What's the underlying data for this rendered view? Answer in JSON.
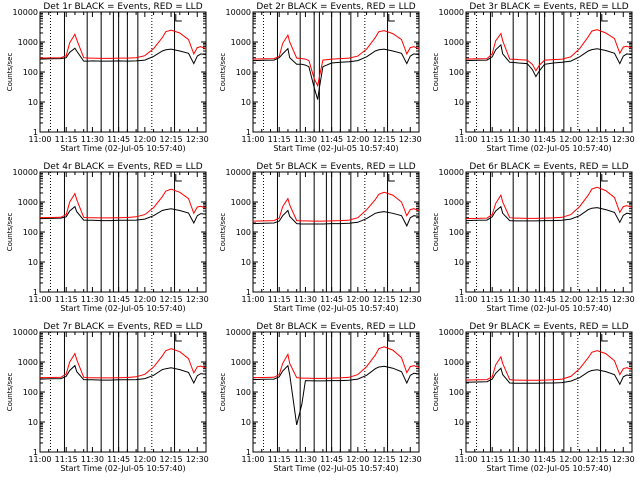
{
  "common": {
    "xlabel": "Start Time (02-Jul-05 10:57:40)",
    "ylabel": "Counts/sec",
    "x_ticks": [
      "11:00",
      "11:15",
      "11:30",
      "11:45",
      "12:00",
      "12:15",
      "12:30"
    ],
    "y_ticks": [
      "1",
      "10",
      "100",
      "1000",
      "10000"
    ],
    "colors": {
      "events": "#000000",
      "lld": "#ff0000",
      "axes": "#000000",
      "background": "#ffffff"
    }
  },
  "chart_data": [
    {
      "type": "line",
      "title": "Det 1r BLACK = Events, RED = LLD",
      "xlabel": "Start Time (02-Jul-05 10:57:40)",
      "ylabel": "Counts/sec",
      "y_scale": "log",
      "ylim": [
        1,
        10000
      ],
      "xlim": [
        "11:00",
        "12:35"
      ],
      "x_minutes_since_11_00": [
        0,
        6,
        12,
        15,
        17,
        20,
        21,
        25,
        28,
        30,
        35,
        40,
        45,
        50,
        55,
        60,
        65,
        70,
        72,
        75,
        80,
        85,
        88,
        90,
        92,
        95
      ],
      "series": [
        {
          "name": "Events",
          "color": "#000000",
          "values": [
            270,
            275,
            280,
            300,
            450,
            620,
            500,
            230,
            230,
            235,
            230,
            230,
            235,
            230,
            235,
            250,
            330,
            500,
            550,
            580,
            500,
            420,
            190,
            340,
            400,
            380
          ]
        },
        {
          "name": "LLD",
          "color": "#ff0000",
          "values": [
            290,
            295,
            300,
            350,
            950,
            1800,
            1200,
            300,
            290,
            290,
            285,
            285,
            290,
            290,
            300,
            350,
            600,
            1400,
            2200,
            2500,
            2000,
            1200,
            400,
            650,
            700,
            600
          ]
        }
      ],
      "vertical_lines_minutes": [
        6,
        14,
        27,
        35,
        42,
        45,
        50,
        56,
        64,
        77
      ],
      "dotted_vertical_lines_minutes": [
        6,
        64
      ]
    },
    {
      "type": "line",
      "title": "Det 2r BLACK = Events, RED = LLD",
      "xlabel": "Start Time (02-Jul-05 10:57:40)",
      "ylabel": "Counts/sec",
      "y_scale": "log",
      "ylim": [
        1,
        10000
      ],
      "xlim": [
        "11:00",
        "12:35"
      ],
      "x_minutes_since_11_00": [
        0,
        6,
        12,
        15,
        17,
        20,
        21,
        25,
        28,
        30,
        32,
        35,
        37,
        38,
        40,
        45,
        50,
        55,
        60,
        65,
        70,
        72,
        75,
        80,
        85,
        88,
        90,
        92,
        95
      ],
      "series": [
        {
          "name": "Events",
          "color": "#000000",
          "values": [
            240,
            245,
            250,
            300,
            400,
            600,
            300,
            180,
            180,
            170,
            150,
            30,
            12,
            30,
            150,
            200,
            210,
            220,
            240,
            320,
            500,
            550,
            580,
            500,
            420,
            190,
            340,
            400,
            380
          ]
        },
        {
          "name": "LLD",
          "color": "#ff0000",
          "values": [
            270,
            275,
            280,
            330,
            900,
            1700,
            1000,
            290,
            280,
            270,
            240,
            60,
            35,
            70,
            250,
            270,
            280,
            290,
            340,
            580,
            1400,
            2200,
            2400,
            1900,
            1200,
            400,
            650,
            700,
            600
          ]
        }
      ],
      "vertical_lines_minutes": [
        6,
        14,
        27,
        35,
        38,
        45,
        50,
        56,
        64,
        77
      ],
      "dotted_vertical_lines_minutes": [
        6,
        64
      ]
    },
    {
      "type": "line",
      "title": "Det 3r BLACK = Events, RED = LLD",
      "xlabel": "Start Time (02-Jul-05 10:57:40)",
      "ylabel": "Counts/sec",
      "y_scale": "log",
      "ylim": [
        1,
        10000
      ],
      "xlim": [
        "11:00",
        "12:35"
      ],
      "x_minutes_since_11_00": [
        0,
        6,
        12,
        15,
        17,
        20,
        21,
        25,
        28,
        30,
        35,
        38,
        40,
        42,
        45,
        50,
        55,
        60,
        65,
        70,
        72,
        75,
        80,
        85,
        88,
        90,
        92,
        95
      ],
      "series": [
        {
          "name": "Events",
          "color": "#000000",
          "values": [
            240,
            245,
            250,
            320,
            550,
            800,
            400,
            210,
            205,
            200,
            190,
            120,
            70,
            110,
            180,
            200,
            210,
            230,
            320,
            500,
            560,
            600,
            520,
            420,
            190,
            340,
            400,
            380
          ]
        },
        {
          "name": "LLD",
          "color": "#ff0000",
          "values": [
            270,
            275,
            280,
            400,
            1100,
            1900,
            1100,
            270,
            265,
            260,
            250,
            180,
            110,
            170,
            250,
            260,
            270,
            320,
            600,
            1500,
            2300,
            2600,
            2000,
            1300,
            420,
            680,
            720,
            620
          ]
        }
      ],
      "vertical_lines_minutes": [
        6,
        14,
        27,
        35,
        42,
        45,
        50,
        56,
        64,
        77
      ],
      "dotted_vertical_lines_minutes": [
        6,
        64
      ]
    },
    {
      "type": "line",
      "title": "Det 4r BLACK = Events, RED = LLD",
      "xlabel": "Start Time (02-Jul-05 10:57:40)",
      "ylabel": "Counts/sec",
      "y_scale": "log",
      "ylim": [
        1,
        10000
      ],
      "xlim": [
        "11:00",
        "12:35"
      ],
      "x_minutes_since_11_00": [
        0,
        6,
        12,
        15,
        17,
        20,
        21,
        25,
        28,
        30,
        35,
        40,
        45,
        50,
        55,
        60,
        65,
        70,
        72,
        75,
        80,
        85,
        88,
        90,
        92,
        95
      ],
      "series": [
        {
          "name": "Events",
          "color": "#000000",
          "values": [
            280,
            285,
            290,
            320,
            500,
            700,
            480,
            250,
            245,
            245,
            240,
            240,
            245,
            245,
            250,
            270,
            350,
            520,
            560,
            600,
            520,
            430,
            200,
            350,
            410,
            390
          ]
        },
        {
          "name": "LLD",
          "color": "#ff0000",
          "values": [
            300,
            305,
            310,
            380,
            1000,
            1900,
            1200,
            310,
            300,
            300,
            295,
            295,
            300,
            305,
            320,
            380,
            650,
            1500,
            2300,
            2700,
            2100,
            1300,
            420,
            680,
            720,
            620
          ]
        }
      ],
      "vertical_lines_minutes": [
        6,
        14,
        27,
        35,
        42,
        45,
        50,
        56,
        64,
        77
      ],
      "dotted_vertical_lines_minutes": [
        6,
        64
      ]
    },
    {
      "type": "line",
      "title": "Det 5r BLACK = Events, RED = LLD",
      "xlabel": "Start Time (02-Jul-05 10:57:40)",
      "ylabel": "Counts/sec",
      "y_scale": "log",
      "ylim": [
        1,
        10000
      ],
      "xlim": [
        "11:00",
        "12:35"
      ],
      "x_minutes_since_11_00": [
        0,
        6,
        12,
        15,
        17,
        20,
        21,
        25,
        28,
        30,
        35,
        40,
        45,
        50,
        55,
        60,
        65,
        70,
        72,
        75,
        80,
        85,
        88,
        90,
        92,
        95
      ],
      "series": [
        {
          "name": "Events",
          "color": "#000000",
          "values": [
            190,
            195,
            200,
            230,
            350,
            520,
            330,
            190,
            185,
            185,
            185,
            185,
            190,
            190,
            195,
            210,
            280,
            420,
            450,
            480,
            420,
            350,
            160,
            300,
            350,
            330
          ]
        },
        {
          "name": "LLD",
          "color": "#ff0000",
          "values": [
            230,
            235,
            240,
            290,
            700,
            1300,
            800,
            240,
            235,
            235,
            230,
            230,
            235,
            240,
            250,
            300,
            550,
            1200,
            1800,
            2100,
            1700,
            1000,
            350,
            560,
            600,
            520
          ]
        }
      ],
      "vertical_lines_minutes": [
        6,
        14,
        27,
        35,
        42,
        45,
        50,
        56,
        64,
        77
      ],
      "dotted_vertical_lines_minutes": [
        6,
        64
      ]
    },
    {
      "type": "line",
      "title": "Det 6r BLACK = Events, RED = LLD",
      "xlabel": "Start Time (02-Jul-05 10:57:40)",
      "ylabel": "Counts/sec",
      "y_scale": "log",
      "ylim": [
        1,
        10000
      ],
      "xlim": [
        "11:00",
        "12:35"
      ],
      "x_minutes_since_11_00": [
        0,
        6,
        12,
        15,
        17,
        20,
        21,
        25,
        28,
        30,
        35,
        40,
        45,
        50,
        55,
        60,
        65,
        70,
        72,
        75,
        80,
        85,
        88,
        90,
        92,
        95
      ],
      "series": [
        {
          "name": "Events",
          "color": "#000000",
          "values": [
            240,
            245,
            250,
            320,
            500,
            700,
            420,
            240,
            235,
            235,
            235,
            235,
            240,
            240,
            245,
            270,
            350,
            560,
            620,
            650,
            560,
            450,
            210,
            360,
            420,
            400
          ]
        },
        {
          "name": "LLD",
          "color": "#ff0000",
          "values": [
            280,
            285,
            290,
            380,
            900,
            1700,
            1000,
            300,
            290,
            290,
            285,
            285,
            290,
            295,
            310,
            380,
            700,
            1700,
            2700,
            3100,
            2400,
            1400,
            450,
            700,
            760,
            660
          ]
        }
      ],
      "vertical_lines_minutes": [
        6,
        14,
        27,
        35,
        42,
        45,
        50,
        56,
        64,
        77
      ],
      "dotted_vertical_lines_minutes": [
        6,
        64
      ]
    },
    {
      "type": "line",
      "title": "Det 7r BLACK = Events, RED = LLD",
      "xlabel": "Start Time (02-Jul-05 10:57:40)",
      "ylabel": "Counts/sec",
      "y_scale": "log",
      "ylim": [
        1,
        10000
      ],
      "xlim": [
        "11:00",
        "12:35"
      ],
      "x_minutes_since_11_00": [
        0,
        6,
        12,
        15,
        17,
        20,
        21,
        25,
        28,
        30,
        35,
        40,
        45,
        50,
        55,
        60,
        65,
        70,
        72,
        75,
        80,
        85,
        88,
        90,
        92,
        95
      ],
      "series": [
        {
          "name": "Events",
          "color": "#000000",
          "values": [
            270,
            275,
            280,
            330,
            520,
            760,
            480,
            260,
            255,
            255,
            250,
            250,
            255,
            255,
            260,
            280,
            360,
            560,
            600,
            640,
            560,
            450,
            200,
            350,
            410,
            390
          ]
        },
        {
          "name": "LLD",
          "color": "#ff0000",
          "values": [
            300,
            305,
            310,
            400,
            1000,
            1900,
            1200,
            310,
            300,
            300,
            295,
            295,
            300,
            305,
            320,
            390,
            680,
            1600,
            2400,
            2800,
            2200,
            1300,
            430,
            690,
            730,
            630
          ]
        }
      ],
      "vertical_lines_minutes": [
        6,
        14,
        27,
        35,
        42,
        45,
        50,
        56,
        64,
        77
      ],
      "dotted_vertical_lines_minutes": [
        6,
        64
      ]
    },
    {
      "type": "line",
      "title": "Det 8r BLACK = Events, RED = LLD",
      "xlabel": "Start Time (02-Jul-05 10:57:40)",
      "ylabel": "Counts/sec",
      "y_scale": "log",
      "ylim": [
        1,
        10000
      ],
      "xlim": [
        "11:00",
        "12:35"
      ],
      "x_minutes_since_11_00": [
        0,
        6,
        12,
        15,
        17,
        20,
        21,
        25,
        28,
        30,
        35,
        40,
        45,
        50,
        55,
        60,
        65,
        70,
        72,
        75,
        80,
        85,
        88,
        90,
        92,
        95
      ],
      "series": [
        {
          "name": "Events",
          "color": "#000000",
          "values": [
            260,
            265,
            270,
            320,
            500,
            760,
            380,
            8,
            40,
            240,
            235,
            235,
            240,
            240,
            245,
            270,
            360,
            600,
            680,
            720,
            620,
            480,
            200,
            360,
            420,
            400
          ]
        },
        {
          "name": "LLD",
          "color": "#ff0000",
          "values": [
            300,
            305,
            310,
            380,
            900,
            1800,
            900,
            300,
            290,
            290,
            285,
            285,
            290,
            295,
            310,
            380,
            700,
            1700,
            2800,
            3200,
            2500,
            1400,
            440,
            700,
            760,
            660
          ]
        }
      ],
      "vertical_lines_minutes": [
        6,
        14,
        27,
        35,
        42,
        45,
        50,
        56,
        64,
        77
      ],
      "dotted_vertical_lines_minutes": [
        6,
        64
      ]
    },
    {
      "type": "line",
      "title": "Det 9r BLACK = Events, RED = LLD",
      "xlabel": "Start Time (02-Jul-05 10:57:40)",
      "ylabel": "Counts/sec",
      "y_scale": "log",
      "ylim": [
        1,
        10000
      ],
      "xlim": [
        "11:00",
        "12:35"
      ],
      "x_minutes_since_11_00": [
        0,
        6,
        12,
        15,
        17,
        20,
        21,
        25,
        28,
        30,
        35,
        40,
        45,
        50,
        55,
        60,
        65,
        70,
        72,
        75,
        80,
        85,
        88,
        90,
        92,
        95
      ],
      "series": [
        {
          "name": "Events",
          "color": "#000000",
          "values": [
            210,
            215,
            220,
            270,
            420,
            620,
            380,
            200,
            195,
            195,
            195,
            195,
            200,
            200,
            205,
            230,
            300,
            470,
            520,
            550,
            480,
            380,
            180,
            320,
            370,
            350
          ]
        },
        {
          "name": "LLD",
          "color": "#ff0000",
          "values": [
            250,
            255,
            260,
            320,
            800,
            1500,
            900,
            260,
            250,
            250,
            245,
            245,
            250,
            255,
            270,
            330,
            600,
            1400,
            2100,
            2400,
            1900,
            1100,
            380,
            600,
            650,
            560
          ]
        }
      ],
      "vertical_lines_minutes": [
        6,
        14,
        27,
        35,
        42,
        45,
        50,
        56,
        64,
        77
      ],
      "dotted_vertical_lines_minutes": [
        6,
        64
      ]
    }
  ]
}
